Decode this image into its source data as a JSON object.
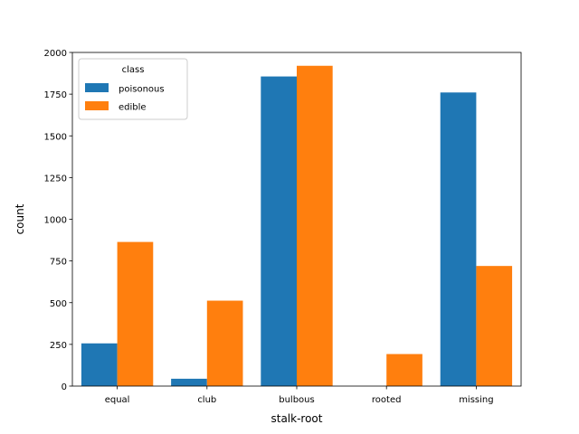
{
  "chart_data": {
    "type": "bar",
    "title": "",
    "xlabel": "stalk-root",
    "ylabel": "count",
    "categories": [
      "equal",
      "club",
      "bulbous",
      "rooted",
      "missing"
    ],
    "series": [
      {
        "name": "poisonous",
        "color": "#1f77b4",
        "values": [
          256,
          44,
          1856,
          0,
          1760
        ]
      },
      {
        "name": "edible",
        "color": "#ff7f0e",
        "values": [
          864,
          512,
          1920,
          192,
          720
        ]
      }
    ],
    "ylim": [
      0,
      2000
    ],
    "yticks": [
      0,
      250,
      500,
      750,
      1000,
      1250,
      1500,
      1750,
      2000
    ],
    "legend": {
      "title": "class",
      "position": "top-left"
    },
    "grid": false
  }
}
